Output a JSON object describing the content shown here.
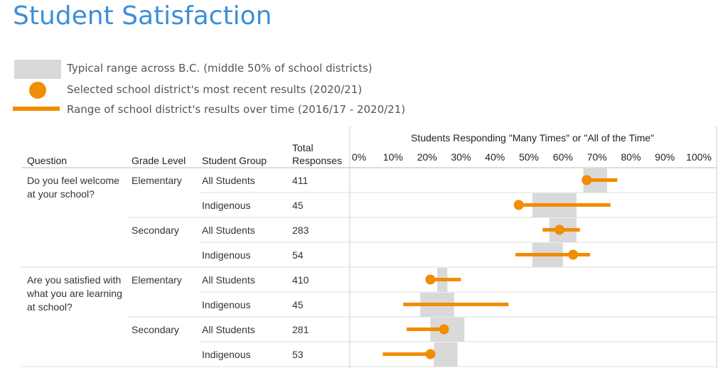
{
  "title": "Student Satisfaction",
  "colors": {
    "title": "#3d8ed8",
    "range_box": "#d9d9d9",
    "accent": "#f28c00",
    "gridline": "#dddddd"
  },
  "legend": {
    "items": [
      {
        "label": "Typical range across B.C. (middle 50% of school districts)",
        "swatch": "box"
      },
      {
        "label": "Selected school district's most recent results (2020/21)",
        "swatch": "dot"
      },
      {
        "label": "Range of school district's results over time (2016/17 - 2020/21)",
        "swatch": "line"
      }
    ]
  },
  "table": {
    "headers": {
      "question": "Question",
      "grade": "Grade Level",
      "group": "Student Group",
      "total": "Total\nResponses"
    },
    "questions": [
      {
        "text": "Do you feel welcome at your school?",
        "grades": [
          {
            "grade": "Elementary",
            "rows": [
              {
                "group": "All Students",
                "total": "411"
              },
              {
                "group": "Indigenous",
                "total": "45"
              }
            ]
          },
          {
            "grade": "Secondary",
            "rows": [
              {
                "group": "All Students",
                "total": "283"
              },
              {
                "group": "Indigenous",
                "total": "54"
              }
            ]
          }
        ]
      },
      {
        "text": "Are you satisfied with what you are learning at school?",
        "grades": [
          {
            "grade": "Elementary",
            "rows": [
              {
                "group": "All Students",
                "total": "410"
              },
              {
                "group": "Indigenous",
                "total": "45"
              }
            ]
          },
          {
            "grade": "Secondary",
            "rows": [
              {
                "group": "All Students",
                "total": "281"
              },
              {
                "group": "Indigenous",
                "total": "53"
              }
            ]
          }
        ]
      }
    ]
  },
  "chart_data": {
    "type": "scatter",
    "title": "Students Responding \"Many Times\" or \"All of the Time\"",
    "xlim": [
      0,
      100
    ],
    "x_ticks": [
      "0%",
      "10%",
      "20%",
      "30%",
      "40%",
      "50%",
      "60%",
      "70%",
      "80%",
      "90%",
      "100%"
    ],
    "rows": [
      {
        "question": "Do you feel welcome at your school?",
        "grade": "Elementary",
        "group": "All Students",
        "bc_range": [
          66,
          73
        ],
        "recent": 67,
        "range_over_time": [
          67,
          76
        ]
      },
      {
        "question": "Do you feel welcome at your school?",
        "grade": "Elementary",
        "group": "Indigenous",
        "bc_range": [
          51,
          64
        ],
        "recent": 47,
        "range_over_time": [
          47,
          74
        ]
      },
      {
        "question": "Do you feel welcome at your school?",
        "grade": "Secondary",
        "group": "All Students",
        "bc_range": [
          56,
          64
        ],
        "recent": 59,
        "range_over_time": [
          54,
          65
        ]
      },
      {
        "question": "Do you feel welcome at your school?",
        "grade": "Secondary",
        "group": "Indigenous",
        "bc_range": [
          51,
          60
        ],
        "recent": 63,
        "range_over_time": [
          46,
          68
        ]
      },
      {
        "question": "Are you satisfied with what you are learning at school?",
        "grade": "Elementary",
        "group": "All Students",
        "bc_range": [
          23,
          26
        ],
        "recent": 21,
        "range_over_time": [
          21,
          30
        ]
      },
      {
        "question": "Are you satisfied with what you are learning at school?",
        "grade": "Elementary",
        "group": "Indigenous",
        "bc_range": [
          18,
          28
        ],
        "recent": null,
        "range_over_time": [
          13,
          44
        ]
      },
      {
        "question": "Are you satisfied with what you are learning at school?",
        "grade": "Secondary",
        "group": "All Students",
        "bc_range": [
          21,
          31
        ],
        "recent": 25,
        "range_over_time": [
          14,
          25
        ]
      },
      {
        "question": "Are you satisfied with what you are learning at school?",
        "grade": "Secondary",
        "group": "Indigenous",
        "bc_range": [
          22,
          29
        ],
        "recent": 21,
        "range_over_time": [
          7,
          21
        ]
      }
    ]
  }
}
